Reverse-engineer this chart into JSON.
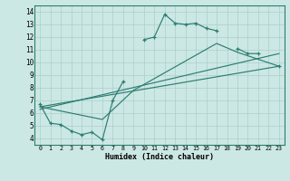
{
  "title": "",
  "xlabel": "Humidex (Indice chaleur)",
  "background_color": "#cce8e4",
  "grid_color": "#aacfcb",
  "line_color": "#2d7d72",
  "xlim": [
    -0.5,
    23.5
  ],
  "ylim": [
    3.5,
    14.5
  ],
  "xticks": [
    0,
    1,
    2,
    3,
    4,
    5,
    6,
    7,
    8,
    9,
    10,
    11,
    12,
    13,
    14,
    15,
    16,
    17,
    18,
    19,
    20,
    21,
    22,
    23
  ],
  "yticks": [
    4,
    5,
    6,
    7,
    8,
    9,
    10,
    11,
    12,
    13,
    14
  ],
  "series0": {
    "x": [
      0,
      1,
      2,
      3,
      4,
      5,
      6,
      7,
      8,
      9,
      10,
      11,
      12,
      13,
      14,
      15,
      16,
      17,
      18,
      19,
      20,
      21,
      22,
      23
    ],
    "y": [
      6.7,
      5.2,
      5.1,
      4.6,
      4.3,
      4.5,
      3.9,
      7.0,
      8.5,
      null,
      11.8,
      12.0,
      13.8,
      13.1,
      13.0,
      13.1,
      12.7,
      12.5,
      null,
      11.1,
      10.7,
      10.7,
      null,
      9.7
    ]
  },
  "line1": {
    "x": [
      0,
      23
    ],
    "y": [
      6.5,
      9.7
    ]
  },
  "line2": {
    "x": [
      0,
      23
    ],
    "y": [
      6.3,
      10.7
    ]
  },
  "line3": {
    "x": [
      0,
      6,
      9,
      17,
      19,
      23
    ],
    "y": [
      6.5,
      5.5,
      7.8,
      11.5,
      10.8,
      9.7
    ]
  }
}
